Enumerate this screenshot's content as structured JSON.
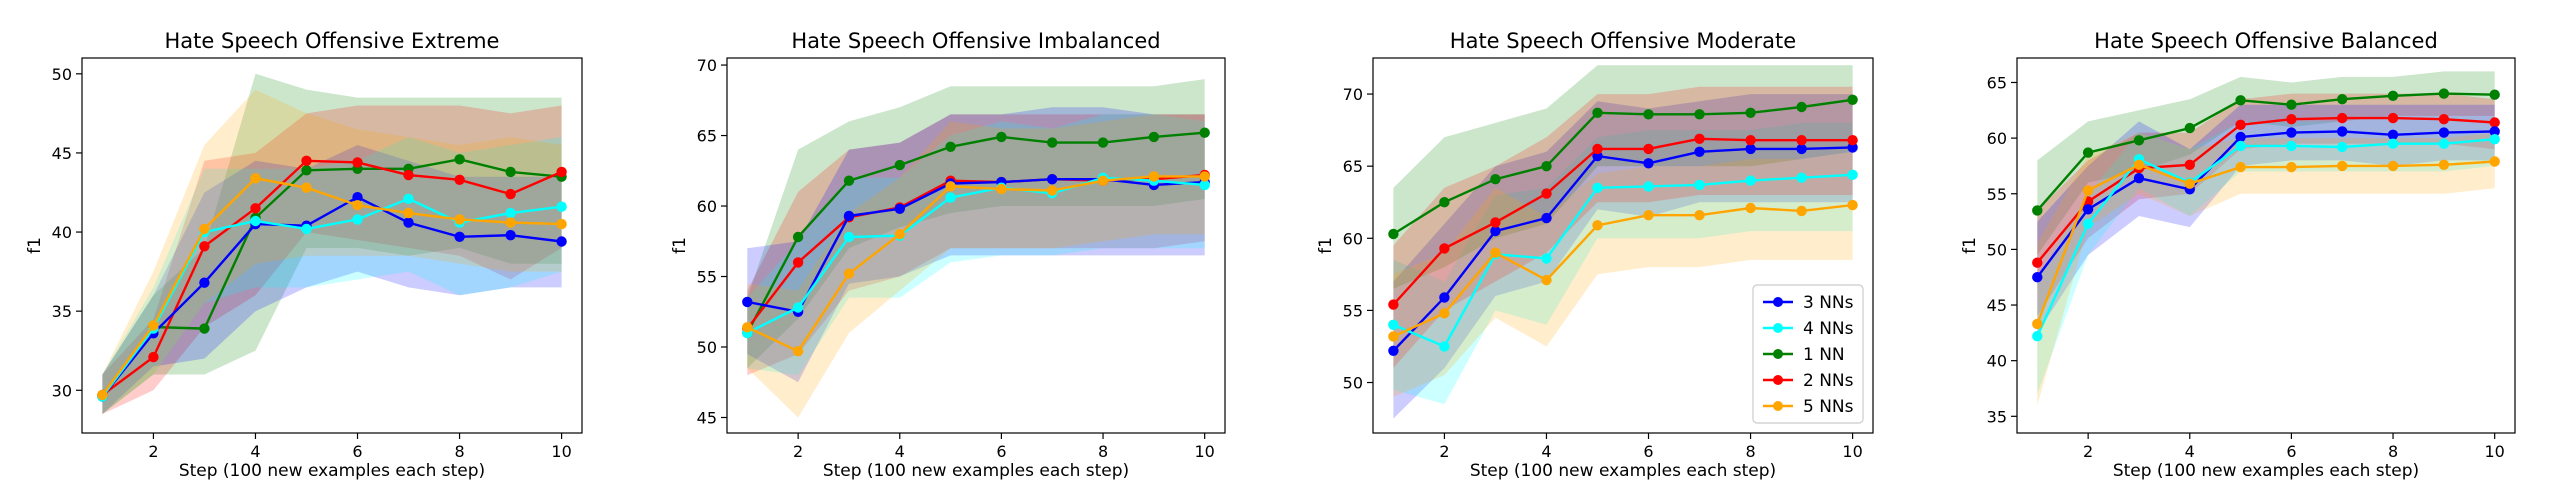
{
  "chart_data": [
    {
      "type": "line",
      "title": "Hate Speech Offensive Extreme",
      "xlabel": "Step (100 new examples each step)",
      "ylabel": "f1",
      "xlim": [
        0.6,
        10.4
      ],
      "ylim": [
        27.3,
        51.0
      ],
      "xticks": [
        2,
        4,
        6,
        8,
        10
      ],
      "yticks": [
        30,
        35,
        40,
        45,
        50
      ],
      "x": [
        1,
        2,
        3,
        4,
        5,
        6,
        7,
        8,
        9,
        10
      ],
      "series": [
        {
          "name": "1 NN",
          "color": "#008000",
          "values": [
            29.7,
            34.0,
            33.9,
            40.9,
            43.9,
            44.0,
            44.0,
            44.6,
            43.8,
            43.5
          ],
          "lower": [
            28.5,
            31.0,
            31.0,
            32.5,
            39.0,
            39.0,
            38.5,
            39.0,
            38.0,
            38.0
          ],
          "upper": [
            31.0,
            36.0,
            39.0,
            50.0,
            49.0,
            48.5,
            48.5,
            48.5,
            48.5,
            48.5
          ]
        },
        {
          "name": "2 NNs",
          "color": "#ff0000",
          "values": [
            29.7,
            32.1,
            39.1,
            41.5,
            44.5,
            44.4,
            43.6,
            43.3,
            42.4,
            43.8
          ],
          "lower": [
            28.5,
            30.0,
            34.0,
            36.0,
            40.0,
            39.5,
            39.0,
            38.5,
            37.0,
            39.0
          ],
          "upper": [
            31.0,
            34.5,
            44.5,
            45.0,
            47.5,
            48.0,
            48.0,
            48.0,
            47.5,
            48.0
          ]
        },
        {
          "name": "3 NNs",
          "color": "#0000ff",
          "values": [
            29.6,
            33.6,
            36.8,
            40.5,
            40.4,
            42.2,
            40.6,
            39.7,
            39.8,
            39.4
          ],
          "lower": [
            28.5,
            31.5,
            32.0,
            35.0,
            36.5,
            37.5,
            36.5,
            36.0,
            36.5,
            36.5
          ],
          "upper": [
            31.0,
            36.0,
            42.5,
            44.5,
            44.0,
            45.5,
            44.5,
            43.5,
            43.5,
            43.5
          ]
        },
        {
          "name": "4 NNs",
          "color": "#00ffff",
          "values": [
            29.6,
            33.9,
            40.0,
            40.7,
            40.2,
            40.8,
            42.1,
            40.6,
            41.2,
            41.6
          ],
          "lower": [
            28.5,
            31.0,
            35.5,
            36.5,
            36.5,
            37.0,
            37.5,
            36.0,
            36.5,
            37.5
          ],
          "upper": [
            31.0,
            36.5,
            44.0,
            44.0,
            44.0,
            44.5,
            46.0,
            45.0,
            45.5,
            46.0
          ]
        },
        {
          "name": "5 NNs",
          "color": "#ffa500",
          "values": [
            29.7,
            34.1,
            40.2,
            43.4,
            42.8,
            41.7,
            41.2,
            40.8,
            40.6,
            40.5
          ],
          "lower": [
            28.5,
            31.0,
            35.5,
            38.0,
            38.5,
            38.5,
            38.5,
            38.0,
            37.5,
            37.5
          ],
          "upper": [
            31.0,
            37.5,
            45.5,
            49.0,
            47.5,
            46.5,
            46.0,
            45.5,
            46.0,
            45.5
          ]
        }
      ]
    },
    {
      "type": "line",
      "title": "Hate Speech Offensive Imbalanced",
      "xlabel": "Step (100 new examples each step)",
      "ylabel": "f1",
      "xlim": [
        0.6,
        10.4
      ],
      "ylim": [
        43.9,
        70.5
      ],
      "xticks": [
        2,
        4,
        6,
        8,
        10
      ],
      "yticks": [
        45,
        50,
        55,
        60,
        65,
        70
      ],
      "x": [
        1,
        2,
        3,
        4,
        5,
        6,
        7,
        8,
        9,
        10
      ],
      "series": [
        {
          "name": "1 NN",
          "color": "#008000",
          "values": [
            51.0,
            57.8,
            61.8,
            62.9,
            64.2,
            64.9,
            64.5,
            64.5,
            64.9,
            65.2
          ],
          "lower": [
            48.5,
            52.0,
            57.0,
            58.5,
            59.5,
            60.0,
            60.0,
            60.0,
            60.0,
            60.5
          ],
          "upper": [
            53.5,
            64.0,
            66.0,
            67.0,
            68.5,
            68.5,
            68.5,
            68.5,
            68.5,
            69.0
          ]
        },
        {
          "name": "2 NNs",
          "color": "#ff0000",
          "values": [
            51.3,
            56.0,
            59.2,
            59.9,
            61.8,
            61.7,
            61.9,
            61.8,
            61.9,
            62.2
          ],
          "lower": [
            48.0,
            49.5,
            54.0,
            55.0,
            57.0,
            57.0,
            57.0,
            57.0,
            57.0,
            57.5
          ],
          "upper": [
            54.0,
            61.0,
            64.0,
            64.5,
            66.5,
            66.5,
            66.5,
            66.5,
            66.5,
            66.5
          ]
        },
        {
          "name": "3 NNs",
          "color": "#0000ff",
          "values": [
            53.2,
            52.5,
            59.3,
            59.8,
            61.6,
            61.7,
            61.9,
            61.9,
            61.5,
            61.7
          ],
          "lower": [
            49.5,
            47.5,
            54.5,
            55.0,
            56.5,
            56.5,
            56.5,
            56.5,
            56.5,
            56.5
          ],
          "upper": [
            57.0,
            57.5,
            64.0,
            64.5,
            66.5,
            66.5,
            67.0,
            67.0,
            66.5,
            66.5
          ]
        },
        {
          "name": "4 NNs",
          "color": "#00ffff",
          "values": [
            51.0,
            52.8,
            57.8,
            57.9,
            60.6,
            61.3,
            60.9,
            62.0,
            61.8,
            61.5
          ],
          "lower": [
            48.5,
            48.0,
            53.5,
            53.5,
            56.0,
            56.5,
            56.5,
            57.0,
            57.0,
            57.0
          ],
          "upper": [
            53.5,
            57.5,
            62.0,
            62.0,
            65.0,
            66.0,
            65.5,
            66.5,
            66.5,
            66.0
          ]
        },
        {
          "name": "5 NNs",
          "color": "#ffa500",
          "values": [
            51.4,
            49.7,
            55.2,
            58.0,
            61.4,
            61.2,
            61.1,
            61.8,
            62.1,
            62.1
          ],
          "lower": [
            48.5,
            45.0,
            51.0,
            54.0,
            57.0,
            57.0,
            57.0,
            57.5,
            58.0,
            58.0
          ],
          "upper": [
            54.5,
            54.0,
            59.5,
            62.0,
            66.0,
            65.5,
            65.5,
            66.0,
            66.5,
            66.5
          ]
        }
      ]
    },
    {
      "type": "line",
      "title": "Hate Speech Offensive Moderate",
      "xlabel": "Step (100 new examples each step)",
      "ylabel": "f1",
      "xlim": [
        0.6,
        10.4
      ],
      "ylim": [
        46.5,
        72.5
      ],
      "xticks": [
        2,
        4,
        6,
        8,
        10
      ],
      "yticks": [
        50,
        55,
        60,
        65,
        70
      ],
      "x": [
        1,
        2,
        3,
        4,
        5,
        6,
        7,
        8,
        9,
        10
      ],
      "series": [
        {
          "name": "3 NNs",
          "color": "#0000ff",
          "values": [
            52.2,
            55.9,
            60.5,
            61.4,
            65.7,
            65.2,
            66.0,
            66.2,
            66.2,
            66.3
          ],
          "lower": [
            47.5,
            51.0,
            56.0,
            57.0,
            62.0,
            61.5,
            62.5,
            62.5,
            62.5,
            62.5
          ],
          "upper": [
            57.0,
            61.0,
            65.0,
            66.0,
            69.5,
            69.0,
            69.5,
            70.0,
            70.0,
            70.0
          ]
        },
        {
          "name": "4 NNs",
          "color": "#00ffff",
          "values": [
            54.0,
            52.5,
            58.9,
            58.6,
            63.5,
            63.6,
            63.7,
            64.0,
            64.2,
            64.4
          ],
          "lower": [
            49.5,
            48.5,
            55.0,
            54.0,
            60.0,
            60.0,
            60.0,
            60.5,
            60.5,
            60.5
          ],
          "upper": [
            58.5,
            57.0,
            63.0,
            63.5,
            67.0,
            67.5,
            67.5,
            67.5,
            68.0,
            68.0
          ]
        },
        {
          "name": "1 NN",
          "color": "#008000",
          "values": [
            60.3,
            62.5,
            64.1,
            65.0,
            68.7,
            68.6,
            68.6,
            68.7,
            69.1,
            69.6
          ],
          "lower": [
            56.5,
            58.0,
            60.0,
            61.0,
            65.0,
            65.0,
            65.0,
            65.0,
            65.5,
            66.0
          ],
          "upper": [
            63.5,
            67.0,
            68.0,
            69.0,
            72.0,
            72.0,
            72.0,
            72.0,
            72.0,
            72.0
          ]
        },
        {
          "name": "2 NNs",
          "color": "#ff0000",
          "values": [
            55.4,
            59.3,
            61.1,
            63.1,
            66.2,
            66.2,
            66.9,
            66.8,
            66.8,
            66.8
          ],
          "lower": [
            51.0,
            55.0,
            57.0,
            59.0,
            62.5,
            62.5,
            63.0,
            63.0,
            63.0,
            63.0
          ],
          "upper": [
            59.5,
            63.5,
            65.0,
            67.0,
            70.0,
            70.0,
            70.5,
            70.5,
            70.5,
            70.5
          ]
        },
        {
          "name": "5 NNs",
          "color": "#ffa500",
          "values": [
            53.2,
            54.8,
            59.0,
            57.1,
            60.9,
            61.6,
            61.6,
            62.1,
            61.9,
            62.3
          ],
          "lower": [
            49.0,
            50.5,
            54.5,
            52.5,
            57.5,
            58.0,
            58.0,
            58.5,
            58.5,
            58.5
          ],
          "upper": [
            57.5,
            59.0,
            63.5,
            61.5,
            64.5,
            65.0,
            65.0,
            65.5,
            65.5,
            66.0
          ]
        }
      ]
    },
    {
      "type": "line",
      "title": "Hate Speech Offensive Balanced",
      "xlabel": "Step (100 new examples each step)",
      "ylabel": "f1",
      "xlim": [
        0.6,
        10.4
      ],
      "ylim": [
        33.5,
        67.2
      ],
      "xticks": [
        2,
        4,
        6,
        8,
        10
      ],
      "yticks": [
        35,
        40,
        45,
        50,
        55,
        60,
        65
      ],
      "x": [
        1,
        2,
        3,
        4,
        5,
        6,
        7,
        8,
        9,
        10
      ],
      "series": [
        {
          "name": "1 NN",
          "color": "#008000",
          "values": [
            53.5,
            58.7,
            59.8,
            60.9,
            63.4,
            63.0,
            63.5,
            63.8,
            64.0,
            63.9
          ],
          "lower": [
            49.5,
            56.0,
            57.0,
            58.5,
            61.5,
            61.0,
            61.5,
            62.0,
            62.0,
            62.0
          ],
          "upper": [
            58.0,
            61.5,
            62.5,
            63.5,
            65.5,
            65.0,
            65.5,
            65.5,
            66.0,
            66.0
          ]
        },
        {
          "name": "2 NNs",
          "color": "#ff0000",
          "values": [
            48.8,
            54.3,
            57.3,
            57.6,
            61.2,
            61.7,
            61.8,
            61.8,
            61.7,
            61.4
          ],
          "lower": [
            44.0,
            51.0,
            54.5,
            55.0,
            59.0,
            59.5,
            59.5,
            59.5,
            59.5,
            59.0
          ],
          "upper": [
            53.5,
            58.0,
            60.5,
            60.5,
            63.5,
            64.0,
            64.0,
            64.0,
            64.0,
            63.5
          ]
        },
        {
          "name": "3 NNs",
          "color": "#0000ff",
          "values": [
            47.5,
            53.6,
            56.4,
            55.4,
            60.1,
            60.5,
            60.6,
            60.3,
            60.5,
            60.6
          ],
          "lower": [
            42.5,
            49.5,
            53.0,
            52.0,
            57.5,
            58.0,
            58.0,
            57.5,
            58.0,
            58.0
          ],
          "upper": [
            52.5,
            57.5,
            61.5,
            59.0,
            63.0,
            63.0,
            63.0,
            63.0,
            63.0,
            63.0
          ]
        },
        {
          "name": "4 NNs",
          "color": "#00ffff",
          "values": [
            42.2,
            52.3,
            58.1,
            56.0,
            59.3,
            59.3,
            59.2,
            59.5,
            59.5,
            59.9
          ],
          "lower": [
            37.0,
            49.5,
            55.5,
            53.0,
            57.0,
            57.0,
            57.0,
            57.0,
            57.0,
            57.5
          ],
          "upper": [
            47.5,
            55.0,
            60.5,
            59.0,
            61.5,
            61.5,
            61.5,
            62.0,
            62.0,
            62.0
          ]
        },
        {
          "name": "5 NNs",
          "color": "#ffa500",
          "values": [
            43.3,
            55.3,
            57.6,
            55.9,
            57.4,
            57.4,
            57.5,
            57.5,
            57.6,
            57.9
          ],
          "lower": [
            36.0,
            52.0,
            55.0,
            53.0,
            55.0,
            55.0,
            55.0,
            55.0,
            55.0,
            55.5
          ],
          "upper": [
            50.5,
            58.5,
            60.5,
            59.0,
            60.0,
            60.0,
            60.0,
            60.0,
            60.0,
            60.5
          ]
        }
      ]
    }
  ],
  "legend": {
    "panel": 2,
    "position": "lower-right",
    "entries": [
      {
        "label": "3 NNs",
        "color": "#0000ff"
      },
      {
        "label": "4 NNs",
        "color": "#00ffff"
      },
      {
        "label": "1 NN",
        "color": "#008000"
      },
      {
        "label": "2 NNs",
        "color": "#ff0000"
      },
      {
        "label": "5 NNs",
        "color": "#ffa500"
      }
    ]
  }
}
